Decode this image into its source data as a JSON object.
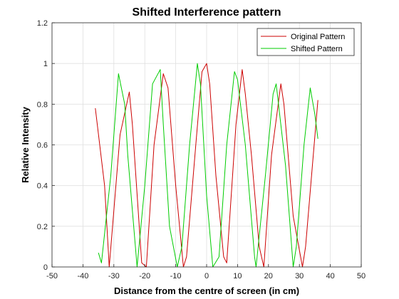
{
  "chart_data": {
    "type": "line",
    "title": "Shifted Interference pattern",
    "xlabel": "Distance from the centre of screen (in cm)",
    "ylabel": "Relative Intensity",
    "xlim": [
      -50,
      50
    ],
    "ylim": [
      0,
      1.2
    ],
    "xticks": [
      -50,
      -40,
      -30,
      -20,
      -10,
      0,
      10,
      20,
      30,
      40,
      50
    ],
    "yticks": [
      0,
      0.2,
      0.4,
      0.6,
      0.8,
      1,
      1.2
    ],
    "xtick_labels": [
      "-50",
      "-40",
      "-30",
      "-20",
      "-10",
      "0",
      "10",
      "20",
      "30",
      "40",
      "50"
    ],
    "ytick_labels": [
      "0",
      "0.2",
      "0.4",
      "0.6",
      "0.8",
      "1",
      "1.2"
    ],
    "grid": true,
    "legend_position": "top-right",
    "series": [
      {
        "name": "Original Pattern",
        "color": "#cc0000",
        "x": [
          -36,
          -33,
          -31.5,
          -28,
          -25,
          -24,
          -21,
          -19.5,
          -17,
          -14,
          -12.5,
          -10,
          -7.5,
          -6.5,
          -3.5,
          -1.5,
          0,
          1,
          3,
          5.5,
          6.5,
          9.5,
          11.5,
          12.5,
          14.5,
          17,
          18.5,
          21,
          24,
          25,
          28,
          31,
          32,
          34.5,
          36
        ],
        "y": [
          0.78,
          0.4,
          0.0,
          0.65,
          0.86,
          0.7,
          0.02,
          0.0,
          0.6,
          0.95,
          0.88,
          0.4,
          0.0,
          0.05,
          0.6,
          0.96,
          1.0,
          0.9,
          0.45,
          0.05,
          0.02,
          0.7,
          0.97,
          0.85,
          0.55,
          0.1,
          0.0,
          0.55,
          0.9,
          0.8,
          0.25,
          0.0,
          0.1,
          0.55,
          0.82
        ]
      },
      {
        "name": "Shifted Pattern",
        "color": "#00cc00",
        "x": [
          -35,
          -34,
          -31,
          -28.5,
          -26.5,
          -25.5,
          -22.5,
          -20,
          -17.5,
          -15,
          -14,
          -12,
          -9.5,
          -8,
          -5.5,
          -3,
          -2,
          0,
          2,
          4,
          6.5,
          9,
          10,
          12.5,
          15.5,
          16,
          19,
          21.5,
          22.5,
          25.5,
          28,
          29,
          31.5,
          33.5,
          35,
          36
        ],
        "y": [
          0.07,
          0.02,
          0.45,
          0.95,
          0.8,
          0.55,
          0.0,
          0.4,
          0.9,
          0.97,
          0.7,
          0.2,
          0.0,
          0.1,
          0.6,
          1.0,
          0.9,
          0.35,
          0.0,
          0.05,
          0.6,
          0.96,
          0.92,
          0.6,
          0.05,
          0.0,
          0.45,
          0.85,
          0.9,
          0.5,
          0.0,
          0.1,
          0.6,
          0.88,
          0.75,
          0.63
        ]
      }
    ]
  }
}
